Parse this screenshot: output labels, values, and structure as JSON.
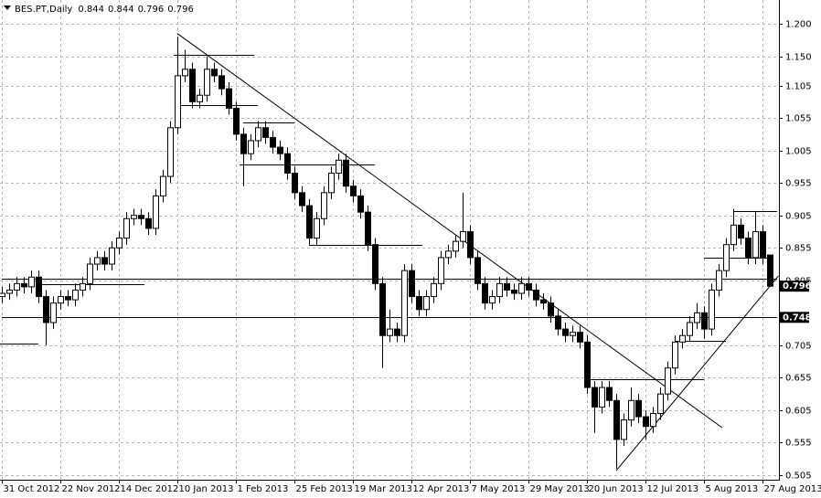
{
  "chart_data": {
    "type": "candlestick",
    "title": "BES.PT,Daily",
    "categories": [
      "31 Oct 2012",
      null,
      null,
      null,
      null,
      null,
      null,
      null,
      "22 Nov 2012",
      null,
      null,
      null,
      null,
      null,
      null,
      null,
      "14 Dec 2012",
      null,
      null,
      null,
      null,
      null,
      null,
      null,
      "10 Jan 2013",
      null,
      null,
      null,
      null,
      null,
      null,
      null,
      "1 Feb 2013",
      null,
      null,
      null,
      null,
      null,
      null,
      null,
      "25 Feb 2013",
      null,
      null,
      null,
      null,
      null,
      null,
      null,
      "19 Mar 2013",
      null,
      null,
      null,
      null,
      null,
      null,
      null,
      "12 Apr 2013",
      null,
      null,
      null,
      null,
      null,
      null,
      null,
      "7 May 2013",
      null,
      null,
      null,
      null,
      null,
      null,
      null,
      "29 May 2013",
      null,
      null,
      null,
      null,
      null,
      null,
      null,
      "20 Jun 2013",
      null,
      null,
      null,
      null,
      null,
      null,
      null,
      "12 Jul 2013",
      null,
      null,
      null,
      null,
      null,
      null,
      null,
      "5 Aug 2013",
      null,
      null,
      null,
      null,
      null,
      null,
      null,
      "27 Aug 2013",
      null
    ],
    "open": [
      0.78,
      0.785,
      0.79,
      0.8,
      0.795,
      0.81,
      0.78,
      0.74,
      0.77,
      0.78,
      0.775,
      0.79,
      0.8,
      0.83,
      0.84,
      0.83,
      0.855,
      0.87,
      0.9,
      0.905,
      0.9,
      0.885,
      0.935,
      0.965,
      1.04,
      1.12,
      1.13,
      1.08,
      1.09,
      1.13,
      1.12,
      1.1,
      1.07,
      1.03,
      1.0,
      1.02,
      1.04,
      1.025,
      1.01,
      1.0,
      0.97,
      0.94,
      0.92,
      0.87,
      0.9,
      0.94,
      0.97,
      0.99,
      0.95,
      0.935,
      0.91,
      0.86,
      0.8,
      0.72,
      0.73,
      0.72,
      0.82,
      0.78,
      0.76,
      0.78,
      0.8,
      0.84,
      0.85,
      0.865,
      0.88,
      0.84,
      0.8,
      0.77,
      0.78,
      0.8,
      0.79,
      0.785,
      0.8,
      0.79,
      0.775,
      0.77,
      0.75,
      0.73,
      0.72,
      0.725,
      0.71,
      0.64,
      0.61,
      0.64,
      0.62,
      0.56,
      0.59,
      0.62,
      0.595,
      0.58,
      0.6,
      0.63,
      0.67,
      0.71,
      0.72,
      0.74,
      0.755,
      0.73,
      0.79,
      0.82,
      0.86,
      0.89,
      0.87,
      0.84,
      0.88,
      0.844
    ],
    "high": [
      0.795,
      0.8,
      0.81,
      0.81,
      0.82,
      0.82,
      0.79,
      0.78,
      0.79,
      0.79,
      0.8,
      0.81,
      0.84,
      0.85,
      0.85,
      0.865,
      0.88,
      0.91,
      0.915,
      0.915,
      0.91,
      0.945,
      0.975,
      1.05,
      1.18,
      1.16,
      1.14,
      1.1,
      1.15,
      1.14,
      1.13,
      1.11,
      1.08,
      1.04,
      1.03,
      1.05,
      1.05,
      1.035,
      1.02,
      1.01,
      0.98,
      0.95,
      0.93,
      0.91,
      0.95,
      0.98,
      1.0,
      1.0,
      0.96,
      0.945,
      0.92,
      0.87,
      0.81,
      0.76,
      0.74,
      0.83,
      0.83,
      0.79,
      0.79,
      0.81,
      0.85,
      0.86,
      0.875,
      0.94,
      0.89,
      0.85,
      0.81,
      0.79,
      0.81,
      0.81,
      0.8,
      0.81,
      0.81,
      0.8,
      0.785,
      0.78,
      0.76,
      0.74,
      0.735,
      0.735,
      0.72,
      0.65,
      0.65,
      0.65,
      0.63,
      0.6,
      0.64,
      0.63,
      0.605,
      0.61,
      0.64,
      0.68,
      0.72,
      0.73,
      0.75,
      0.77,
      0.765,
      0.8,
      0.83,
      0.87,
      0.915,
      0.9,
      0.88,
      0.91,
      0.89,
      0.844
    ],
    "low": [
      0.77,
      0.775,
      0.78,
      0.785,
      0.785,
      0.77,
      0.705,
      0.73,
      0.76,
      0.765,
      0.765,
      0.78,
      0.79,
      0.82,
      0.82,
      0.82,
      0.845,
      0.86,
      0.89,
      0.89,
      0.875,
      0.875,
      0.925,
      0.955,
      1.03,
      1.11,
      1.07,
      1.07,
      1.08,
      1.11,
      1.09,
      1.06,
      1.02,
      0.95,
      0.99,
      1.01,
      1.015,
      1.0,
      0.99,
      0.96,
      0.93,
      0.91,
      0.86,
      0.86,
      0.89,
      0.93,
      0.96,
      0.94,
      0.925,
      0.9,
      0.85,
      0.79,
      0.67,
      0.71,
      0.71,
      0.71,
      0.77,
      0.75,
      0.75,
      0.77,
      0.79,
      0.83,
      0.84,
      0.855,
      0.83,
      0.79,
      0.76,
      0.76,
      0.77,
      0.78,
      0.775,
      0.775,
      0.78,
      0.765,
      0.76,
      0.74,
      0.72,
      0.71,
      0.71,
      0.7,
      0.63,
      0.57,
      0.6,
      0.61,
      0.515,
      0.55,
      0.58,
      0.585,
      0.56,
      0.57,
      0.59,
      0.62,
      0.66,
      0.7,
      0.71,
      0.73,
      0.715,
      0.72,
      0.78,
      0.81,
      0.85,
      0.86,
      0.83,
      0.83,
      0.83,
      0.796
    ],
    "close": [
      0.785,
      0.79,
      0.8,
      0.795,
      0.81,
      0.78,
      0.74,
      0.77,
      0.78,
      0.775,
      0.79,
      0.8,
      0.83,
      0.84,
      0.83,
      0.855,
      0.87,
      0.9,
      0.905,
      0.9,
      0.885,
      0.935,
      0.965,
      1.04,
      1.12,
      1.13,
      1.08,
      1.09,
      1.13,
      1.12,
      1.1,
      1.07,
      1.03,
      1.0,
      1.02,
      1.04,
      1.025,
      1.01,
      1.0,
      0.97,
      0.94,
      0.92,
      0.87,
      0.9,
      0.94,
      0.97,
      0.99,
      0.95,
      0.935,
      0.91,
      0.86,
      0.8,
      0.72,
      0.73,
      0.72,
      0.82,
      0.78,
      0.76,
      0.78,
      0.8,
      0.84,
      0.85,
      0.865,
      0.88,
      0.84,
      0.8,
      0.77,
      0.78,
      0.8,
      0.79,
      0.785,
      0.8,
      0.79,
      0.775,
      0.77,
      0.75,
      0.73,
      0.72,
      0.725,
      0.71,
      0.64,
      0.61,
      0.64,
      0.62,
      0.56,
      0.59,
      0.62,
      0.595,
      0.58,
      0.6,
      0.63,
      0.67,
      0.71,
      0.72,
      0.74,
      0.755,
      0.73,
      0.79,
      0.82,
      0.86,
      0.89,
      0.87,
      0.84,
      0.88,
      0.84,
      0.796
    ],
    "ylim": [
      0.498,
      1.231
    ],
    "yticks": [
      {
        "value": 1.2,
        "label": "1.200"
      },
      {
        "value": 1.15,
        "label": "1.150"
      },
      {
        "value": 1.105,
        "label": "1.105"
      },
      {
        "value": 1.055,
        "label": "1.055"
      },
      {
        "value": 1.005,
        "label": "1.005"
      },
      {
        "value": 0.955,
        "label": "0.955"
      },
      {
        "value": 0.905,
        "label": "0.905"
      },
      {
        "value": 0.855,
        "label": "0.855"
      },
      {
        "value": 0.805,
        "label": "0.805"
      },
      {
        "value": 0.705,
        "label": "0.705"
      },
      {
        "value": 0.655,
        "label": "0.655"
      },
      {
        "value": 0.605,
        "label": "0.605"
      },
      {
        "value": 0.555,
        "label": "0.555"
      },
      {
        "value": 0.505,
        "label": "0.505"
      }
    ],
    "grid": true,
    "price_labels": [
      {
        "value": 0.796,
        "label": "0.796"
      },
      {
        "value": 0.748,
        "label": "0.748"
      }
    ],
    "level_lines": [
      {
        "price": 0.807,
        "from": 0,
        "to": 106
      },
      {
        "price": 0.748,
        "from": 0,
        "to": 106
      },
      {
        "price": 0.708,
        "from": -0.25,
        "to": 5
      },
      {
        "price": 0.799,
        "from": 5,
        "to": 19.5
      },
      {
        "price": 1.152,
        "from": 23.5,
        "to": 34.5
      },
      {
        "price": 1.075,
        "from": 24,
        "to": 35
      },
      {
        "price": 1.048,
        "from": 33,
        "to": 40
      },
      {
        "price": 0.983,
        "from": 32.5,
        "to": 51
      },
      {
        "price": 0.859,
        "from": 42,
        "to": 57.5
      },
      {
        "price": 0.653,
        "from": 80,
        "to": 96
      },
      {
        "price": 0.712,
        "from": 92,
        "to": 99
      },
      {
        "price": 0.912,
        "from": 100,
        "to": 106
      },
      {
        "price": 0.84,
        "from": 96,
        "to": 105.5
      }
    ],
    "trend_lines": [
      {
        "x": [
          24,
          98.5
        ],
        "y": [
          1.185,
          0.578
        ]
      },
      {
        "x": [
          84,
          106.2
        ],
        "y": [
          0.512,
          0.812
        ]
      }
    ]
  }
}
